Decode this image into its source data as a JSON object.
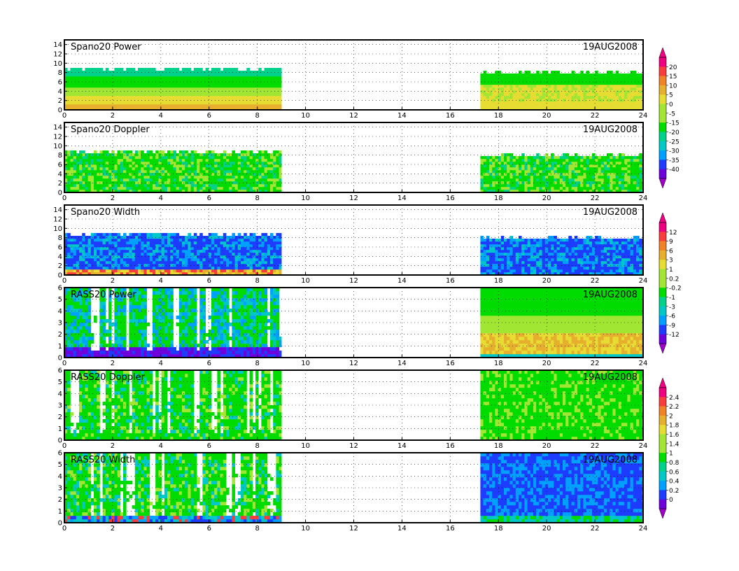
{
  "colors": {
    "background": "#ffffff",
    "frame": "#000000",
    "grid": "#000000",
    "palette": [
      "#a000c8",
      "#6e00dc",
      "#1e3cff",
      "#00a0ff",
      "#00c8c8",
      "#00d28c",
      "#00dc00",
      "#a0e632",
      "#e6dc32",
      "#e6af2d",
      "#f08228",
      "#fa3c3c",
      "#f00082"
    ]
  },
  "chart_data": [
    {
      "type": "heatmap",
      "title": "Spano20 Power",
      "date_label": "19AUG2008",
      "x_ticks": [
        "0",
        "2",
        "4",
        "6",
        "8",
        "10",
        "12",
        "14",
        "16",
        "18",
        "20",
        "22",
        "24"
      ],
      "y_ticks": [
        "0",
        "2",
        "4",
        "6",
        "8",
        "10",
        "12",
        "14"
      ],
      "xlim": [
        0,
        24
      ],
      "ylim": [
        0,
        15
      ],
      "grid": true,
      "data_coverage_hours": [
        [
          0,
          9
        ],
        [
          17.25,
          24
        ]
      ],
      "colorbar": {
        "shared_with_next": true,
        "labels": [
          "20",
          "15",
          "10",
          "5",
          "0",
          "-5",
          "-15",
          "-20",
          "-25",
          "-30",
          "-35",
          "-40"
        ]
      }
    },
    {
      "type": "heatmap",
      "title": "Spano20 Doppler",
      "date_label": "19AUG2008",
      "x_ticks": [
        "0",
        "2",
        "4",
        "6",
        "8",
        "10",
        "12",
        "14",
        "16",
        "18",
        "20",
        "22",
        "24"
      ],
      "y_ticks": [
        "0",
        "2",
        "4",
        "6",
        "8",
        "10",
        "12",
        "14"
      ],
      "xlim": [
        0,
        24
      ],
      "ylim": [
        0,
        15
      ],
      "grid": true,
      "data_coverage_hours": [
        [
          0,
          9
        ],
        [
          17.25,
          24
        ]
      ]
    },
    {
      "type": "heatmap",
      "title": "Spano20 Width",
      "date_label": "19AUG2008",
      "x_ticks": [
        "0",
        "2",
        "4",
        "6",
        "8",
        "10",
        "12",
        "14",
        "16",
        "18",
        "20",
        "22",
        "24"
      ],
      "y_ticks": [
        "0",
        "2",
        "4",
        "6",
        "8",
        "10",
        "12",
        "14"
      ],
      "xlim": [
        0,
        24
      ],
      "ylim": [
        0,
        15
      ],
      "grid": true,
      "data_coverage_hours": [
        [
          0,
          9
        ],
        [
          17.25,
          24
        ]
      ],
      "colorbar": {
        "shared_with_next": true,
        "labels": [
          "12",
          "9",
          "6",
          "3",
          "1",
          "0.2",
          "-0.2",
          "-1",
          "-3",
          "-6",
          "-9",
          "-12"
        ]
      }
    },
    {
      "type": "heatmap",
      "title": "RASS20 Power",
      "date_label": "19AUG2008",
      "x_ticks": [
        "0",
        "2",
        "4",
        "6",
        "8",
        "10",
        "12",
        "14",
        "16",
        "18",
        "20",
        "22",
        "24"
      ],
      "y_ticks": [
        "0",
        "1",
        "2",
        "3",
        "4",
        "5",
        "6"
      ],
      "xlim": [
        0,
        24
      ],
      "ylim": [
        0,
        6
      ],
      "grid": true,
      "data_coverage_hours": [
        [
          0,
          9
        ],
        [
          17.25,
          24
        ]
      ]
    },
    {
      "type": "heatmap",
      "title": "RASS20 Doppler",
      "date_label": "19AUG2008",
      "x_ticks": [
        "0",
        "2",
        "4",
        "6",
        "8",
        "10",
        "12",
        "14",
        "16",
        "18",
        "20",
        "22",
        "24"
      ],
      "y_ticks": [
        "0",
        "1",
        "2",
        "3",
        "4",
        "5",
        "6"
      ],
      "xlim": [
        0,
        24
      ],
      "ylim": [
        0,
        6
      ],
      "grid": true,
      "data_coverage_hours": [
        [
          0,
          9
        ],
        [
          17.25,
          24
        ]
      ],
      "colorbar": {
        "shared_with_next": true,
        "labels": [
          "2.4",
          "2.2",
          "2",
          "1.8",
          "1.6",
          "1.4",
          "1",
          "0.8",
          "0.6",
          "0.4",
          "0.2",
          "0"
        ]
      }
    },
    {
      "type": "heatmap",
      "title": "RASS20 Width",
      "date_label": "19AUG2008",
      "x_ticks": [
        "0",
        "2",
        "4",
        "6",
        "8",
        "10",
        "12",
        "14",
        "16",
        "18",
        "20",
        "22",
        "24"
      ],
      "y_ticks": [
        "0",
        "1",
        "2",
        "3",
        "4",
        "5",
        "6"
      ],
      "xlim": [
        0,
        24
      ],
      "ylim": [
        0,
        6
      ],
      "grid": true,
      "data_coverage_hours": [
        [
          0,
          9
        ],
        [
          17.25,
          24
        ]
      ]
    }
  ]
}
